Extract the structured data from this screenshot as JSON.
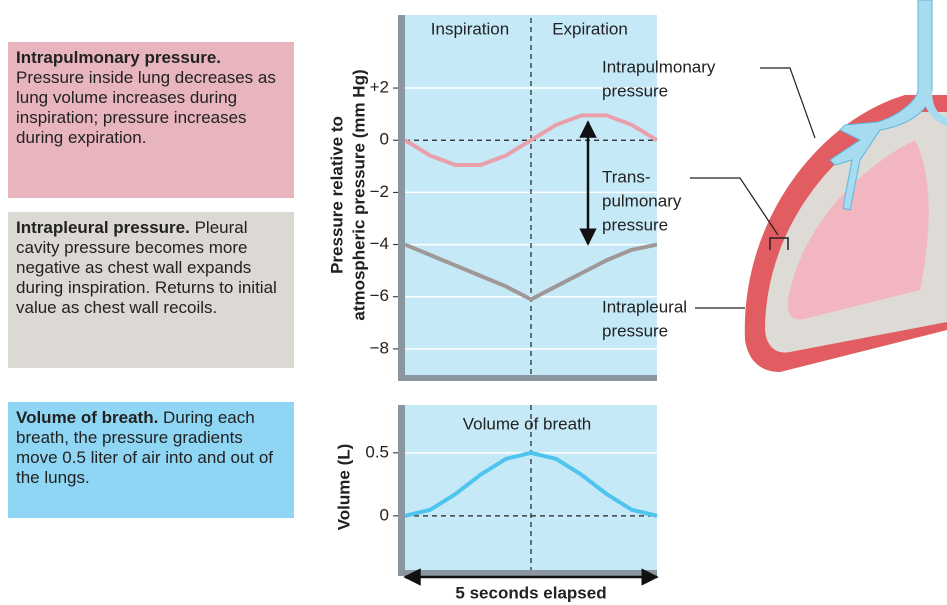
{
  "panels": [
    {
      "title": "Intrapulmonary pressure.",
      "body": "Pressure inside lung decreases as lung volume increases during inspiration; pressure increases during expiration."
    },
    {
      "title": "Intrapleural pressure.",
      "body": "Pleural cavity pressure becomes more negative as chest wall expands during inspiration. Returns to initial value as chest wall recoils."
    },
    {
      "title": "Volume of breath.",
      "body": "During each breath, the pressure gradients move 0.5 liter of air into and out of the lungs."
    }
  ],
  "chart_data": [
    {
      "type": "line",
      "y_label": [
        "Pressure relative to",
        "atmospheric pressure (mm Hg)"
      ],
      "annotations": [
        [
          "Inspiration"
        ],
        [
          "Expiration"
        ],
        [
          "Intrapulmonary",
          "pressure"
        ],
        [
          "Trans-",
          "pulmonary",
          "pressure"
        ],
        [
          "Intrapleural",
          "pressure"
        ]
      ],
      "x": [
        0,
        0.5,
        1,
        1.5,
        2,
        2.5,
        3,
        3.5,
        4,
        4.5,
        5
      ],
      "xlim": [
        0,
        5
      ],
      "series": [
        {
          "name": "Intrapulmonary pressure",
          "color": "#e8a0ab",
          "values": [
            0,
            -0.59,
            -0.95,
            -0.95,
            -0.59,
            0,
            0.59,
            0.95,
            0.95,
            0.59,
            0
          ]
        },
        {
          "name": "Intrapleural pressure",
          "color": "#9f9896",
          "values": [
            -4,
            -4.4,
            -4.8,
            -5.2,
            -5.6,
            -6.1,
            -5.6,
            -5.1,
            -4.6,
            -4.2,
            -4
          ]
        }
      ],
      "ylim": [
        -9,
        4.8
      ],
      "yticks": [
        {
          "value": -8,
          "label": "−8"
        },
        {
          "value": -6,
          "label": "−6"
        },
        {
          "value": -4,
          "label": "−4"
        },
        {
          "value": -2,
          "label": "−2"
        },
        0,
        {
          "value": 2,
          "label": "+2"
        }
      ],
      "grid": true
    },
    {
      "type": "line",
      "y_label": [
        "Volume (L)"
      ],
      "x_label": "5 seconds elapsed",
      "annotations": [
        [
          "Volume of breath"
        ]
      ],
      "x": [
        0,
        0.5,
        1,
        1.5,
        2,
        2.5,
        3,
        3.5,
        4,
        4.5,
        5
      ],
      "xlim": [
        0,
        5
      ],
      "series": [
        {
          "name": "Volume of breath",
          "color": "#4ec4ef",
          "values": [
            0,
            0.048,
            0.173,
            0.327,
            0.452,
            0.5,
            0.452,
            0.327,
            0.173,
            0.048,
            0
          ]
        }
      ],
      "ylim": [
        -0.43,
        0.88
      ],
      "yticks": [
        0,
        0.5
      ],
      "grid": true
    }
  ]
}
